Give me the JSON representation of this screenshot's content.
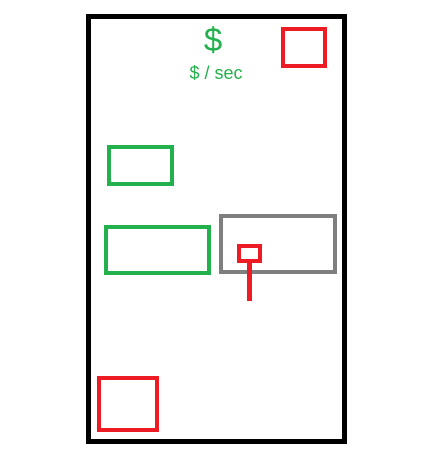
{
  "header": {
    "currency_symbol": "$",
    "rate_label": "$ / sec"
  },
  "colors": {
    "frame": "#000000",
    "green": "#22b14c",
    "red": "#ed1c24",
    "gray": "#7f7f7f"
  }
}
